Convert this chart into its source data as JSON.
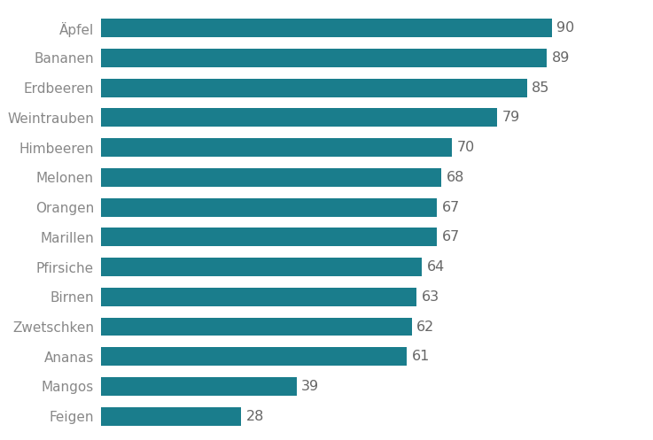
{
  "categories": [
    "Feigen",
    "Mangos",
    "Ananas",
    "Zwetschken",
    "Birnen",
    "Pfirsiche",
    "Marillen",
    "Orangen",
    "Melonen",
    "Himbeeren",
    "Weintrauben",
    "Erdbeeren",
    "Bananen",
    "Äpfel"
  ],
  "values": [
    28,
    39,
    61,
    62,
    63,
    64,
    67,
    67,
    68,
    70,
    79,
    85,
    89,
    90
  ],
  "bar_color": "#1a7d8c",
  "label_color": "#888888",
  "value_color": "#666666",
  "background_color": "#ffffff",
  "bar_height": 0.62,
  "xlim": [
    0,
    105
  ],
  "value_fontsize": 11.5,
  "label_fontsize": 11
}
